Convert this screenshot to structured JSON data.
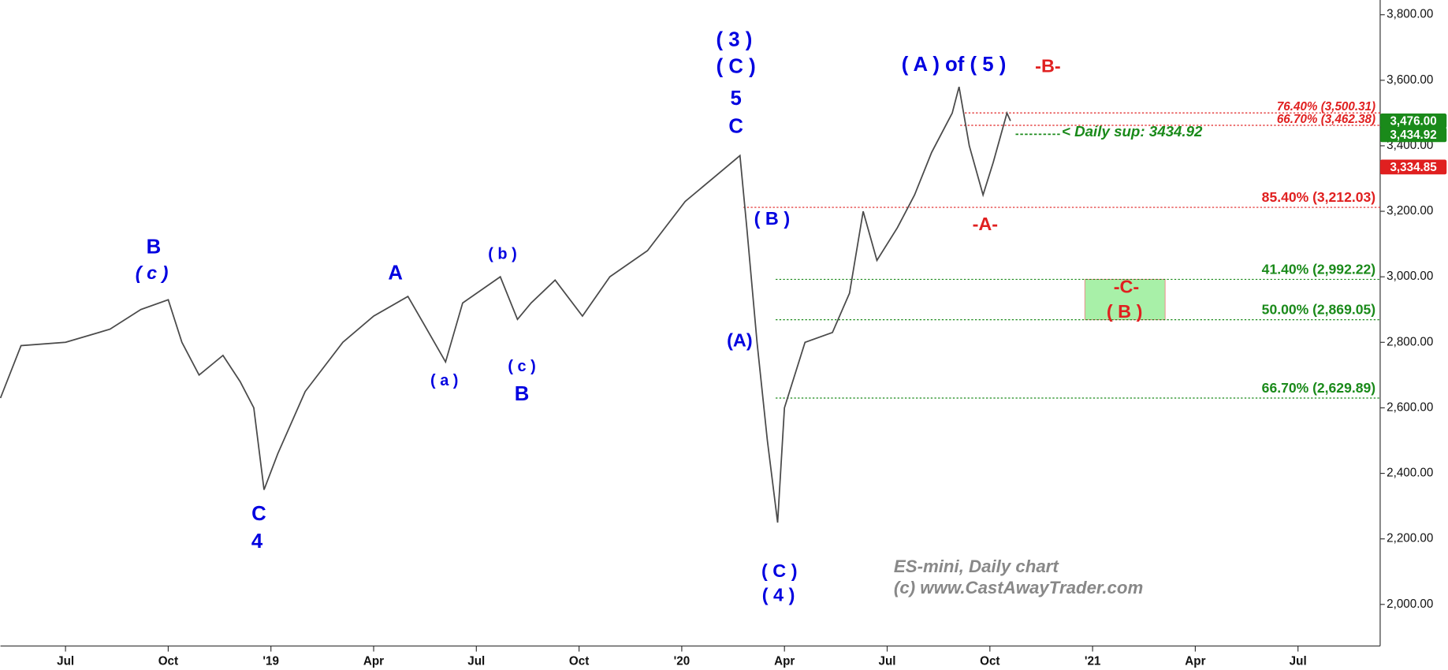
{
  "chart_data": {
    "type": "line",
    "series": [
      {
        "name": "ES-mini",
        "color": "#4a4a4a",
        "x": [
          -1.9,
          -1.3,
          0,
          1.3,
          2.2,
          3.0,
          3.4,
          3.9,
          4.6,
          5.1,
          5.5,
          5.8,
          6.2,
          7.0,
          8.1,
          9.0,
          10.0,
          10.5,
          11.1,
          11.6,
          12.7,
          13.2,
          13.6,
          14.3,
          15.1,
          15.9,
          17.0,
          18.1,
          18.9,
          19.7,
          19.9,
          20.2,
          20.5,
          20.8,
          21.0,
          21.6,
          22.4,
          22.9,
          23.3,
          23.7,
          24.3,
          24.8,
          25.3,
          25.9,
          26.1,
          26.4,
          26.8,
          27.1,
          27.5,
          27.6
        ],
        "values": [
          2630,
          2790,
          2800,
          2840,
          2900,
          2930,
          2800,
          2700,
          2760,
          2680,
          2600,
          2350,
          2460,
          2650,
          2800,
          2880,
          2940,
          2850,
          2740,
          2920,
          3000,
          2870,
          2920,
          2990,
          2880,
          3000,
          3080,
          3230,
          3300,
          3370,
          3150,
          2800,
          2500,
          2250,
          2600,
          2800,
          2830,
          2950,
          3200,
          3050,
          3150,
          3250,
          3380,
          3500,
          3580,
          3400,
          3250,
          3350,
          3500,
          3476
        ]
      }
    ],
    "xlim": [
      -1.9,
      38.4
    ],
    "xticks": [
      {
        "value": 0,
        "label": "Jul"
      },
      {
        "value": 3,
        "label": "Oct"
      },
      {
        "value": 6,
        "label": "'19"
      },
      {
        "value": 9,
        "label": "Apr"
      },
      {
        "value": 12,
        "label": "Jul"
      },
      {
        "value": 15,
        "label": "Oct"
      },
      {
        "value": 18,
        "label": "'20"
      },
      {
        "value": 21,
        "label": "Apr"
      },
      {
        "value": 24,
        "label": "Jul"
      },
      {
        "value": 27,
        "label": "Oct"
      },
      {
        "value": 30,
        "label": "'21"
      },
      {
        "value": 33,
        "label": "Apr"
      },
      {
        "value": 36,
        "label": "Jul"
      }
    ],
    "ylim": [
      1873,
      3845
    ],
    "yticks": [
      {
        "value": 2000,
        "label": "2,000.00"
      },
      {
        "value": 2200,
        "label": "2,200.00"
      },
      {
        "value": 2400,
        "label": "2,400.00"
      },
      {
        "value": 2600,
        "label": "2,600.00"
      },
      {
        "value": 2800,
        "label": "2,800.00"
      },
      {
        "value": 3000,
        "label": "3,000.00"
      },
      {
        "value": 3200,
        "label": "3,200.00"
      },
      {
        "value": 3400,
        "label": "3,400.00"
      },
      {
        "value": 3600,
        "label": "3,600.00"
      },
      {
        "value": 3800,
        "label": "3,800.00"
      }
    ],
    "levels": [
      {
        "label": "76.40% (3,500.31)",
        "value": 3500.31,
        "color": "#e02020"
      },
      {
        "label": "66.70% (3,462.38)",
        "value": 3462.38,
        "color": "#e02020"
      },
      {
        "label": "85.40% (3,212.03)",
        "value": 3212.03,
        "color": "#e02020"
      },
      {
        "label": "41.40% (2,992.22)",
        "value": 2992.22,
        "color": "#1a8a1a"
      },
      {
        "label": "50.00% (2,869.05)",
        "value": 2869.05,
        "color": "#1a8a1a"
      },
      {
        "label": "66.70% (2,629.89)",
        "value": 2629.89,
        "color": "#1a8a1a"
      }
    ],
    "support": {
      "label": "<  Daily sup: 3434.92",
      "value": 3434.92,
      "color": "#1a8a1a"
    },
    "price_tags": [
      {
        "label": "3,476.00",
        "value": 3476,
        "color": "#1a8a1a"
      },
      {
        "label": "3,434.92",
        "value": 3434.92,
        "color": "#1a8a1a"
      },
      {
        "label": "3,334.85",
        "value": 3334.85,
        "color": "#e02020"
      }
    ],
    "target_zone": {
      "low": 2869.05,
      "high": 2992.22,
      "color": "#a8f0a8"
    },
    "annotations": [
      {
        "text": "( 3 )",
        "color": "#0000e0"
      },
      {
        "text": "( C )",
        "color": "#0000e0"
      },
      {
        "text": "5",
        "color": "#0000e0"
      },
      {
        "text": "C",
        "color": "#0000e0"
      },
      {
        "text": "( A ) of ( 5 )",
        "color": "#0000e0"
      },
      {
        "text": "-B-",
        "color": "#e02020"
      },
      {
        "text": "B",
        "color": "#0000e0"
      },
      {
        "text": "( c )",
        "color": "#0000e0"
      },
      {
        "text": "A",
        "color": "#0000e0"
      },
      {
        "text": "( b )",
        "color": "#0000e0"
      },
      {
        "text": "( a )",
        "color": "#0000e0"
      },
      {
        "text": "( c )",
        "color": "#0000e0"
      },
      {
        "text": "B",
        "color": "#0000e0"
      },
      {
        "text": "C",
        "color": "#0000e0"
      },
      {
        "text": "4",
        "color": "#0000e0"
      },
      {
        "text": "( B )",
        "color": "#0000e0"
      },
      {
        "text": "(A)",
        "color": "#0000e0"
      },
      {
        "text": "( C )",
        "color": "#0000e0"
      },
      {
        "text": "( 4 )",
        "color": "#0000e0"
      },
      {
        "text": "-A-",
        "color": "#e02020"
      },
      {
        "text": "-C-",
        "color": "#e02020"
      },
      {
        "text": "( B )",
        "color": "#e02020"
      }
    ],
    "watermark": [
      "ES-mini, Daily chart",
      "(c) www.CastAwayTrader.com"
    ]
  }
}
